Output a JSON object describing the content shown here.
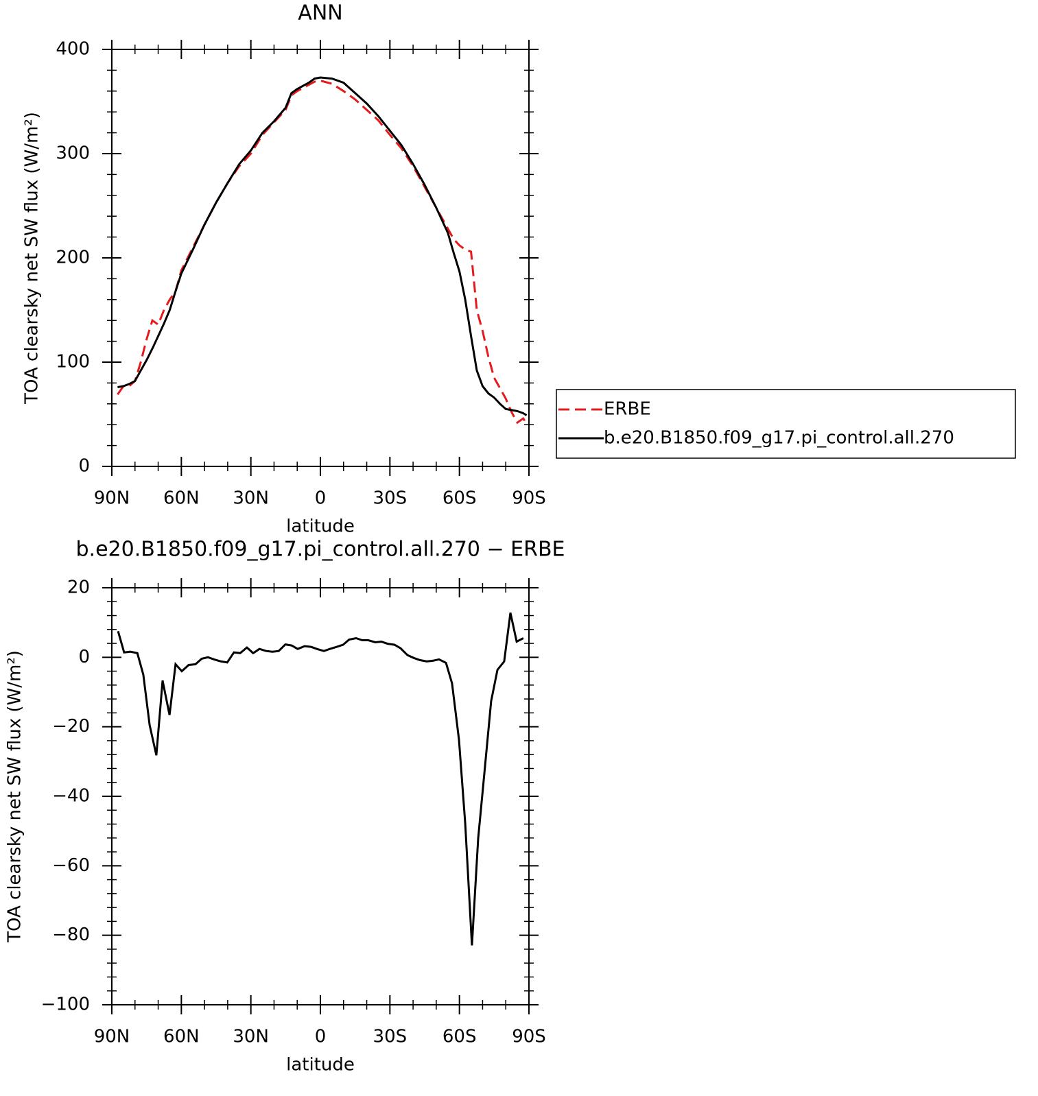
{
  "chart_data": [
    {
      "type": "line",
      "title": "ANN",
      "xlabel": "latitude",
      "ylabel": "TOA clearsky net SW flux (W/m²)",
      "xlim": [
        90,
        -90
      ],
      "xticks": [
        {
          "value": 90,
          "label": "90N"
        },
        {
          "value": 60,
          "label": "60N"
        },
        {
          "value": 30,
          "label": "30N"
        },
        0,
        {
          "value": -30,
          "label": "30S"
        },
        {
          "value": -60,
          "label": "60S"
        },
        {
          "value": -90,
          "label": "90S"
        }
      ],
      "ylim": [
        0,
        400
      ],
      "yticks": [
        0,
        100,
        200,
        300,
        400
      ],
      "legend": "right",
      "x": [
        87.5,
        85,
        82.5,
        80,
        77.5,
        75,
        72.5,
        70,
        67.5,
        65,
        62.5,
        60,
        55,
        50,
        45,
        40,
        35,
        30,
        25,
        20,
        15,
        12.5,
        10,
        5,
        2.5,
        0,
        -5,
        -10,
        -15,
        -20,
        -25,
        -30,
        -35,
        -40,
        -45,
        -50,
        -55,
        -57.5,
        -60,
        -62.5,
        -65,
        -67.5,
        -70,
        -72.5,
        -75,
        -77.5,
        -80,
        -82.5,
        -85,
        -87.5,
        -89
      ],
      "series": [
        {
          "name": "ERBE",
          "color": "#e41a1c",
          "dash": true,
          "values": [
            69,
            77,
            77,
            82,
            100,
            122,
            140,
            136,
            150,
            160,
            168,
            188,
            210,
            232,
            253,
            272,
            288,
            300,
            318,
            330,
            342,
            356,
            360,
            366,
            369,
            370,
            367,
            360,
            352,
            342,
            332,
            318,
            305,
            288,
            268,
            248,
            228,
            218,
            212,
            208,
            206,
            150,
            130,
            105,
            85,
            75,
            65,
            52,
            42,
            46,
            41
          ]
        },
        {
          "name": "b.e20.B1850.f09_g17.pi_control.all.270",
          "color": "#000000",
          "dash": false,
          "values": [
            76,
            77,
            79,
            82,
            92,
            102,
            113,
            125,
            137,
            150,
            168,
            185,
            208,
            232,
            253,
            272,
            290,
            303,
            320,
            331,
            344,
            358,
            362,
            368,
            372,
            373,
            372,
            368,
            358,
            348,
            336,
            322,
            308,
            290,
            270,
            248,
            224,
            205,
            187,
            160,
            125,
            92,
            77,
            70,
            66,
            60,
            55,
            54,
            53,
            51,
            49
          ]
        }
      ]
    },
    {
      "type": "line",
      "title": "b.e20.B1850.f09_g17.pi_control.all.270 − ERBE",
      "xlabel": "latitude",
      "ylabel": "TOA clearsky net SW flux (W/m²)",
      "xlim": [
        90,
        -90
      ],
      "xticks": [
        {
          "value": 90,
          "label": "90N"
        },
        {
          "value": 60,
          "label": "60N"
        },
        {
          "value": 30,
          "label": "30N"
        },
        0,
        {
          "value": -30,
          "label": "30S"
        },
        {
          "value": -60,
          "label": "60S"
        },
        {
          "value": -90,
          "label": "90S"
        }
      ],
      "ylim": [
        -100,
        20
      ],
      "yticks": [
        {
          "value": -100,
          "label": "−100"
        },
        {
          "value": -80,
          "label": "−80"
        },
        {
          "value": -60,
          "label": "−60"
        },
        {
          "value": -40,
          "label": "−40"
        },
        {
          "value": -20,
          "label": "−20"
        },
        0,
        20
      ],
      "color": "#000000",
      "x": [
        87.3,
        84.7,
        82,
        79,
        76.4,
        73.7,
        70.8,
        68.1,
        65.1,
        62.5,
        59.8,
        56.8,
        53.9,
        51.2,
        48.5,
        45.9,
        42.9,
        40.2,
        37.3,
        34.6,
        31.7,
        29,
        26.3,
        23.4,
        20.7,
        18,
        15.1,
        12.4,
        9.8,
        6.8,
        4.1,
        1.5,
        -1.5,
        -4.1,
        -7.1,
        -9.8,
        -12.4,
        -15.4,
        -18.1,
        -20.7,
        -23.7,
        -26.3,
        -29,
        -32,
        -34.6,
        -37.6,
        -40.3,
        -42.9,
        -45.9,
        -48.5,
        -51.2,
        -54.2,
        -56.8,
        -59.8,
        -62.5,
        -65.4,
        -68.1,
        -70.8,
        -73.7,
        -76.4,
        -79.3,
        -82,
        -84.7,
        -87.6
      ],
      "values": [
        7.5,
        1.4,
        1.6,
        1.2,
        -5,
        -19.5,
        -28.2,
        -6.7,
        -16.6,
        -2,
        -4,
        -2.2,
        -2,
        -0.4,
        0,
        -0.6,
        -1.2,
        -1.5,
        1.4,
        1.2,
        2.8,
        1.2,
        2.4,
        1.8,
        1.6,
        1.8,
        3.7,
        3.4,
        2.4,
        3.2,
        3,
        2.4,
        1.8,
        2.4,
        3,
        3.6,
        5.1,
        5.5,
        4.9,
        4.9,
        4.3,
        4.5,
        3.9,
        3.6,
        2.6,
        0.6,
        -0.2,
        -0.8,
        -1.2,
        -1,
        -0.6,
        -1.6,
        -7.5,
        -23.7,
        -47.8,
        -82.9,
        -52.1,
        -33.2,
        -12.6,
        -3.6,
        -1.2,
        12.8,
        4.5,
        5.5
      ]
    }
  ]
}
